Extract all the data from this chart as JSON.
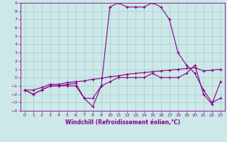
{
  "xlabel": "Windchill (Refroidissement éolien,°C)",
  "xlim": [
    -0.5,
    23.5
  ],
  "ylim": [
    -4,
    9
  ],
  "background_color": "#cce8e8",
  "grid_color": "#aacccc",
  "line_color": "#880088",
  "hours": [
    0,
    1,
    2,
    3,
    4,
    5,
    6,
    7,
    8,
    9,
    10,
    11,
    12,
    13,
    14,
    15,
    16,
    17,
    18,
    19,
    20,
    21,
    22,
    23
  ],
  "line1": [
    -1.5,
    -2.0,
    -1.5,
    -1.0,
    -1.0,
    -1.0,
    -1.0,
    -2.5,
    -2.5,
    -1.0,
    8.5,
    9.0,
    8.5,
    8.5,
    8.5,
    9.0,
    8.5,
    7.0,
    3.0,
    1.5,
    0.5,
    -1.5,
    -3.0,
    -2.5
  ],
  "line2": [
    -1.5,
    -2.0,
    -1.5,
    -1.0,
    -1.0,
    -0.8,
    -0.7,
    -2.5,
    -3.5,
    -1.0,
    -0.5,
    0.0,
    0.0,
    0.0,
    0.0,
    0.5,
    0.0,
    0.0,
    0.0,
    0.5,
    1.5,
    -2.0,
    -3.2,
    -0.5
  ],
  "line3": [
    -1.5,
    -1.5,
    -1.2,
    -0.8,
    -0.8,
    -0.6,
    -0.5,
    -0.4,
    -0.2,
    -0.1,
    0.1,
    0.2,
    0.4,
    0.5,
    0.6,
    0.7,
    0.8,
    0.9,
    1.0,
    1.1,
    1.2,
    0.8,
    0.9,
    1.0
  ]
}
